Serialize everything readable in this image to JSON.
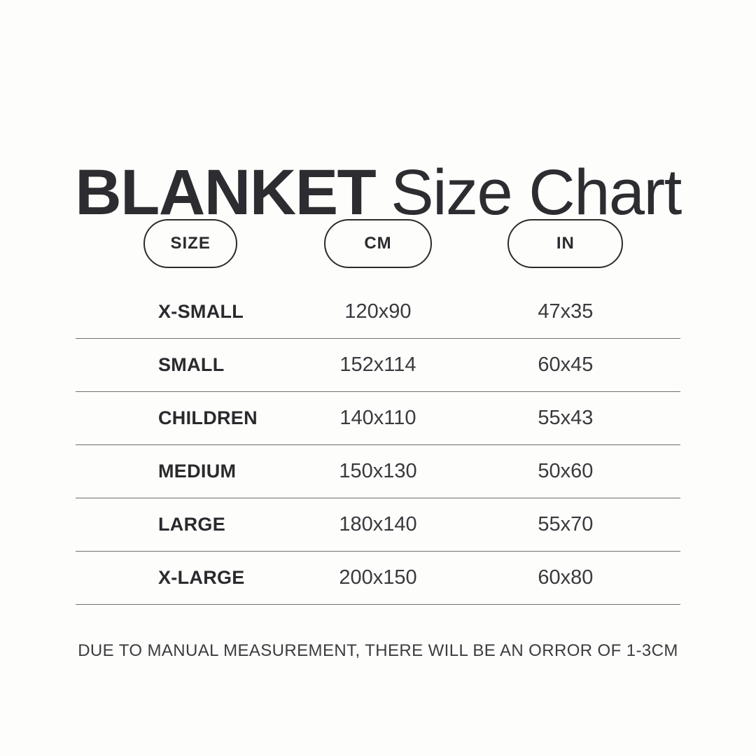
{
  "title": {
    "bold": "BLANKET",
    "regular": "Size Chart"
  },
  "columns": [
    {
      "label": "SIZE"
    },
    {
      "label": "CM"
    },
    {
      "label": "IN"
    }
  ],
  "rows": [
    {
      "size": "X-SMALL",
      "cm": "120x90",
      "in": "47x35"
    },
    {
      "size": "SMALL",
      "cm": "152x114",
      "in": "60x45"
    },
    {
      "size": "CHILDREN",
      "cm": "140x110",
      "in": "55x43"
    },
    {
      "size": "MEDIUM",
      "cm": "150x130",
      "in": "50x60"
    },
    {
      "size": "LARGE",
      "cm": "180x140",
      "in": "55x70"
    },
    {
      "size": "X-LARGE",
      "cm": "200x150",
      "in": "60x80"
    }
  ],
  "footer": {
    "note": "DUE TO MANUAL MEASUREMENT, THERE WILL BE AN ORROR OF 1-3CM"
  },
  "colors": {
    "background": "#fdfdfb",
    "text_dark": "#2d2d31",
    "pill_border": "#2b2b2b",
    "divider": "#6f6f6f"
  },
  "chart_data": {
    "type": "table",
    "title": "BLANKET Size Chart",
    "columns": [
      "SIZE",
      "CM",
      "IN"
    ],
    "rows": [
      [
        "X-SMALL",
        "120x90",
        "47x35"
      ],
      [
        "SMALL",
        "152x114",
        "60x45"
      ],
      [
        "CHILDREN",
        "140x110",
        "55x43"
      ],
      [
        "MEDIUM",
        "150x130",
        "50x60"
      ],
      [
        "LARGE",
        "180x140",
        "55x70"
      ],
      [
        "X-LARGE",
        "200x150",
        "60x80"
      ]
    ],
    "footnote": "DUE TO MANUAL MEASUREMENT, THERE WILL BE AN ORROR OF 1-3CM"
  }
}
